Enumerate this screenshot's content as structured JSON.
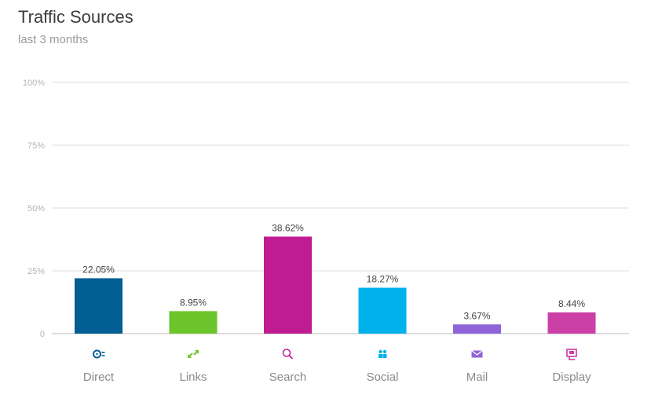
{
  "chart_data": {
    "type": "bar",
    "title": "Traffic Sources",
    "subtitle": "last 3 months",
    "xlabel": "",
    "ylabel": "",
    "ylim": [
      0,
      100
    ],
    "yticks": [
      {
        "value": 0,
        "label": "0"
      },
      {
        "value": 25,
        "label": "25%"
      },
      {
        "value": 50,
        "label": "50%"
      },
      {
        "value": 75,
        "label": "75%"
      },
      {
        "value": 100,
        "label": "100%"
      }
    ],
    "grid": true,
    "categories": [
      "Direct",
      "Links",
      "Search",
      "Social",
      "Mail",
      "Display"
    ],
    "values": [
      22.05,
      8.95,
      38.62,
      18.27,
      3.67,
      8.44
    ],
    "data_labels": [
      "22.05%",
      "8.95%",
      "38.62%",
      "18.27%",
      "3.67%",
      "8.44%"
    ],
    "colors": [
      "#035e94",
      "#6cc52a",
      "#bf1c92",
      "#00b1eb",
      "#8e64d8",
      "#cc3fa7"
    ],
    "icons": [
      "direct-icon",
      "links-icon",
      "search-icon",
      "social-icon",
      "mail-icon",
      "display-icon"
    ]
  }
}
